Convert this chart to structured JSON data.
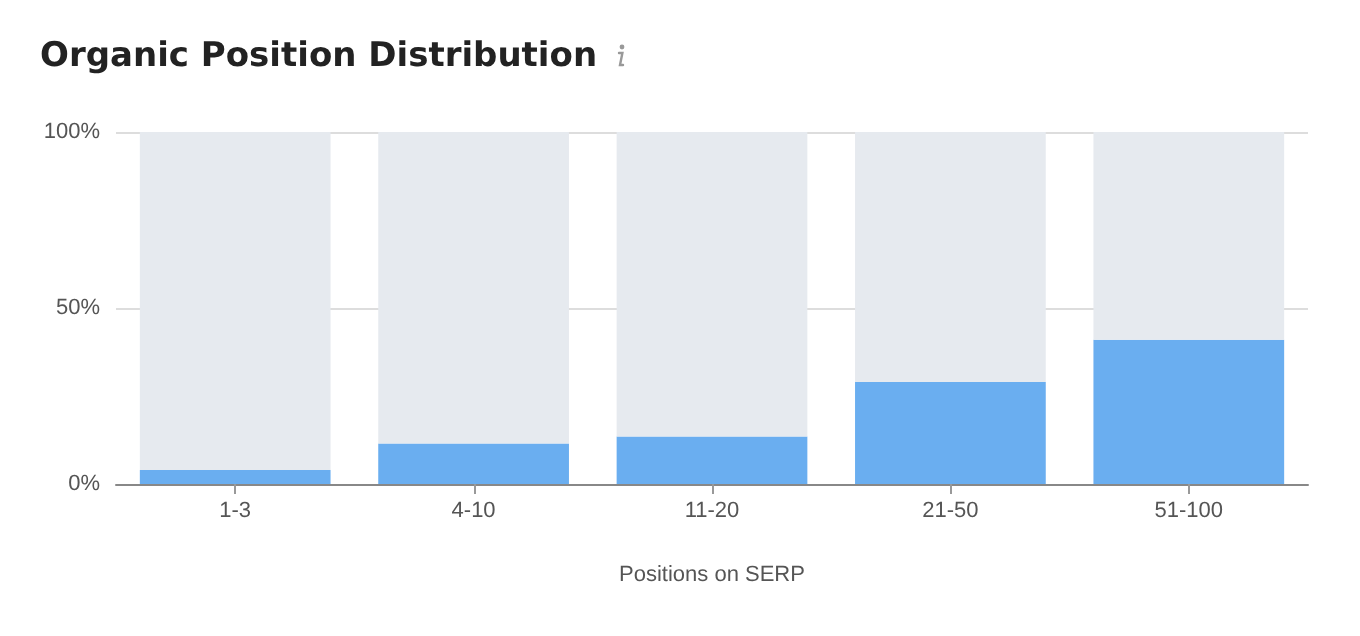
{
  "chart_data": {
    "type": "bar",
    "title": "Organic Position Distribution",
    "xlabel": "Positions on SERP",
    "categories": [
      "1-3",
      "4-10",
      "11-20",
      "21-50",
      "51-100"
    ],
    "series": [
      {
        "color": "#6aaef0",
        "values": [
          4,
          11.5,
          13.5,
          29,
          41
        ]
      },
      {
        "color": "#e6eaef",
        "values": [
          96,
          88.5,
          86.5,
          71,
          59
        ]
      }
    ],
    "stacked": true,
    "ylim": [
      0,
      100
    ],
    "yticks": [
      {
        "value": 0,
        "label": "0%"
      },
      {
        "value": 50,
        "label": "50%"
      },
      {
        "value": 100,
        "label": "100%"
      }
    ],
    "grid": "y"
  }
}
